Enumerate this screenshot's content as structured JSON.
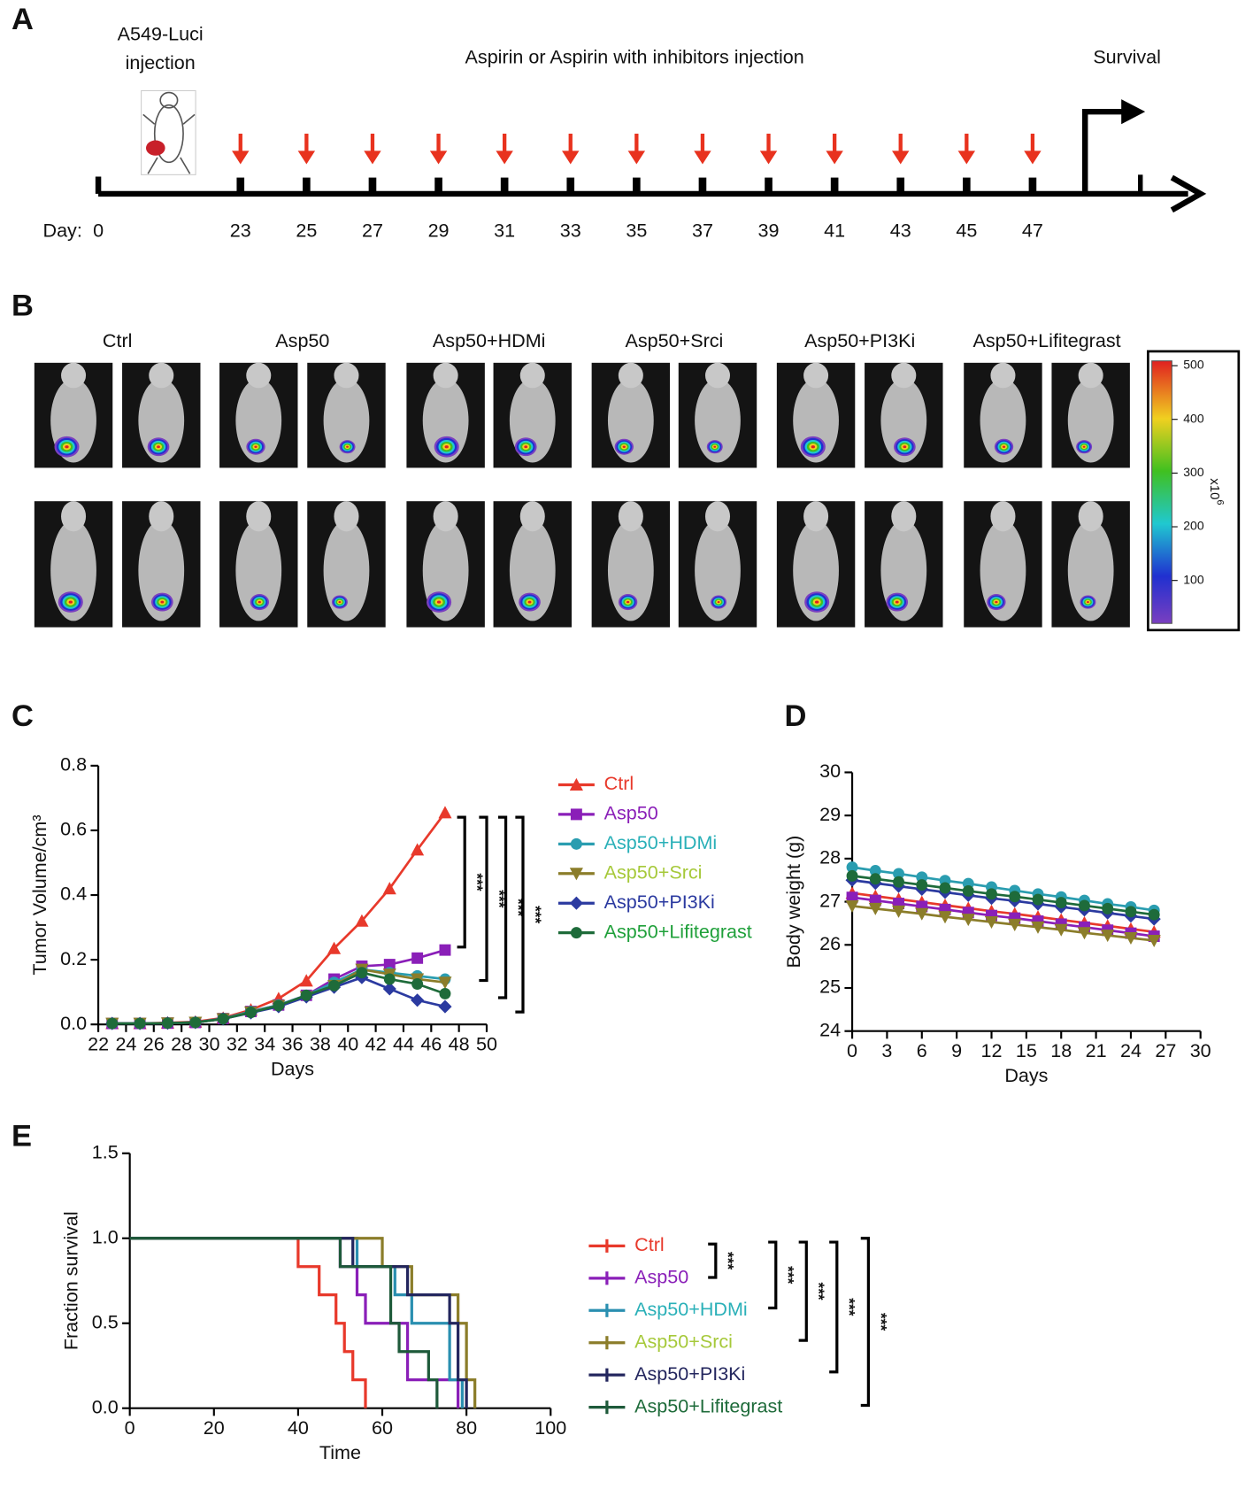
{
  "panel_labels": [
    "A",
    "B",
    "C",
    "D",
    "E"
  ],
  "timeline": {
    "injection_label": [
      "A549-Luci",
      "injection"
    ],
    "treatment_label": "Aspirin or Aspirin with inhibitors injection",
    "endpoint_label": "Survival",
    "day_prefix": "Day:",
    "days": [
      0,
      23,
      25,
      27,
      29,
      31,
      33,
      35,
      37,
      39,
      41,
      43,
      45,
      47
    ]
  },
  "imaging": {
    "groups": [
      "Ctrl",
      "Asp50",
      "Asp50+HDMi",
      "Asp50+Srci",
      "Asp50+PI3Ki",
      "Asp50+Lifitegrast"
    ],
    "colorbar": {
      "ticks": [
        100,
        200,
        300,
        400,
        500
      ],
      "unit_base": "x10",
      "unit_exponent": "6"
    }
  },
  "chart_data": [
    {
      "type": "line",
      "x_label": "Days",
      "y_label": "Tumor Volume/cm³",
      "xlim": [
        22,
        50
      ],
      "xticks": [
        22,
        24,
        26,
        28,
        30,
        32,
        34,
        36,
        38,
        40,
        42,
        44,
        46,
        48,
        50
      ],
      "ylim": [
        0,
        0.8
      ],
      "yticks": [
        {
          "value": 0,
          "label": "0.0"
        },
        0.2,
        0.4,
        0.6,
        0.8
      ],
      "x": [
        23,
        25,
        27,
        29,
        31,
        33,
        35,
        37,
        39,
        41,
        43,
        45,
        47
      ],
      "legend": "right",
      "series": [
        {
          "name": "Ctrl",
          "color": "#e8392b",
          "label_color": "#e8392b",
          "marker": "triangle",
          "values": [
            0.003,
            0.003,
            0.005,
            0.008,
            0.02,
            0.045,
            0.08,
            0.135,
            0.235,
            0.32,
            0.42,
            0.54,
            0.655
          ]
        },
        {
          "name": "Asp50",
          "color": "#8a1fb8",
          "label_color": "#8a1fb8",
          "marker": "square",
          "values": [
            0.003,
            0.003,
            0.004,
            0.006,
            0.018,
            0.04,
            0.06,
            0.09,
            0.14,
            0.18,
            0.185,
            0.205,
            0.23
          ]
        },
        {
          "name": "Asp50+HDMi",
          "color": "#2a9db0",
          "label_color": "#2ab0b8",
          "marker": "circle",
          "values": [
            0.003,
            0.003,
            0.004,
            0.006,
            0.018,
            0.04,
            0.06,
            0.09,
            0.13,
            0.17,
            0.16,
            0.15,
            0.14
          ]
        },
        {
          "name": "Asp50+Srci",
          "color": "#8b7d2a",
          "label_color": "#a6c93a",
          "marker": "triangle-down",
          "values": [
            0.003,
            0.003,
            0.004,
            0.006,
            0.017,
            0.038,
            0.058,
            0.085,
            0.12,
            0.17,
            0.155,
            0.14,
            0.13
          ]
        },
        {
          "name": "Asp50+PI3Ki",
          "color": "#2b3aa0",
          "label_color": "#2b3aa0",
          "marker": "diamond",
          "values": [
            0.003,
            0.003,
            0.004,
            0.006,
            0.017,
            0.036,
            0.055,
            0.085,
            0.115,
            0.145,
            0.11,
            0.075,
            0.055
          ]
        },
        {
          "name": "Asp50+Lifitegrast",
          "color": "#1e6b3a",
          "label_color": "#1fa03a",
          "marker": "circle",
          "values": [
            0.003,
            0.003,
            0.004,
            0.006,
            0.017,
            0.037,
            0.058,
            0.09,
            0.12,
            0.16,
            0.14,
            0.125,
            0.095
          ]
        }
      ],
      "significance": [
        "***",
        "***",
        "***",
        "***"
      ]
    },
    {
      "type": "line",
      "x_label": "Days",
      "y_label": "Body weight (g)",
      "xlim": [
        0,
        30
      ],
      "xticks": [
        0,
        3,
        6,
        9,
        12,
        15,
        18,
        21,
        24,
        27,
        30
      ],
      "ylim": [
        24,
        30
      ],
      "yticks": [
        24,
        25,
        26,
        27,
        28,
        29,
        30
      ],
      "x": [
        0,
        2,
        4,
        6,
        8,
        10,
        12,
        14,
        16,
        18,
        20,
        22,
        24,
        26
      ],
      "series": [
        {
          "color": "#e8392b",
          "marker": "triangle",
          "values": [
            27.2,
            27.13,
            27.06,
            26.99,
            26.92,
            26.85,
            26.78,
            26.72,
            26.65,
            26.58,
            26.51,
            26.44,
            26.37,
            26.3
          ]
        },
        {
          "color": "#8a1fb8",
          "marker": "square",
          "values": [
            27.1,
            27.03,
            26.96,
            26.89,
            26.82,
            26.75,
            26.68,
            26.62,
            26.55,
            26.48,
            26.41,
            26.34,
            26.27,
            26.2
          ]
        },
        {
          "color": "#2a9db0",
          "marker": "circle",
          "values": [
            27.8,
            27.72,
            27.65,
            27.57,
            27.49,
            27.42,
            27.34,
            27.26,
            27.18,
            27.11,
            27.03,
            26.95,
            26.88,
            26.8
          ]
        },
        {
          "color": "#8b7d2a",
          "marker": "triangle-down",
          "values": [
            26.9,
            26.84,
            26.78,
            26.72,
            26.65,
            26.59,
            26.53,
            26.47,
            26.41,
            26.35,
            26.28,
            26.22,
            26.16,
            26.1
          ]
        },
        {
          "color": "#2b3aa0",
          "marker": "diamond",
          "values": [
            27.5,
            27.43,
            27.36,
            27.29,
            27.22,
            27.15,
            27.08,
            27.02,
            26.95,
            26.88,
            26.81,
            26.74,
            26.67,
            26.6
          ]
        },
        {
          "color": "#1e6b3a",
          "marker": "circle",
          "values": [
            27.6,
            27.53,
            27.46,
            27.39,
            27.32,
            27.25,
            27.18,
            27.12,
            27.05,
            26.98,
            26.91,
            26.84,
            26.77,
            26.7
          ]
        }
      ]
    },
    {
      "type": "step",
      "x_label": "Time",
      "y_label": "Fraction survival",
      "xlim": [
        0,
        100
      ],
      "xticks": [
        0,
        20,
        40,
        60,
        80,
        100
      ],
      "ylim": [
        0,
        1.5
      ],
      "yticks": [
        {
          "value": 0,
          "label": "0.0"
        },
        0.5,
        {
          "value": 1,
          "label": "1.0"
        },
        1.5
      ],
      "legend": "right",
      "series": [
        {
          "name": "Ctrl",
          "color": "#e8392b",
          "label_color": "#e8392b",
          "x": [
            0,
            40,
            45,
            49,
            51,
            53,
            56
          ],
          "values": [
            1,
            0.833,
            0.667,
            0.5,
            0.333,
            0.167,
            0
          ]
        },
        {
          "name": "Asp50",
          "color": "#8a1fb8",
          "label_color": "#8a1fb8",
          "x": [
            0,
            50,
            54,
            56,
            66,
            78
          ],
          "values": [
            1,
            0.833,
            0.667,
            0.5,
            0.167,
            0
          ]
        },
        {
          "name": "Asp50+HDMi",
          "color": "#2a8fb0",
          "label_color": "#2ab0b8",
          "x": [
            0,
            54,
            63,
            67,
            76,
            79
          ],
          "values": [
            1,
            0.833,
            0.667,
            0.5,
            0.167,
            0
          ]
        },
        {
          "name": "Asp50+Srci",
          "color": "#8b7d2a",
          "label_color": "#a6c93a",
          "x": [
            0,
            60,
            67,
            78,
            80,
            82
          ],
          "values": [
            1,
            0.833,
            0.667,
            0.5,
            0.167,
            0
          ]
        },
        {
          "name": "Asp50+PI3Ki",
          "color": "#23265e",
          "label_color": "#23265e",
          "x": [
            0,
            53,
            66,
            76,
            78,
            80
          ],
          "values": [
            1,
            0.833,
            0.667,
            0.5,
            0.167,
            0
          ]
        },
        {
          "name": "Asp50+Lifitegrast",
          "color": "#1e5a3a",
          "label_color": "#1e6b3a",
          "x": [
            0,
            50,
            62,
            64,
            71,
            73
          ],
          "values": [
            1,
            0.833,
            0.5,
            0.333,
            0.167,
            0
          ]
        }
      ],
      "significance": [
        "***",
        "***",
        "***",
        "***",
        "***"
      ]
    }
  ]
}
